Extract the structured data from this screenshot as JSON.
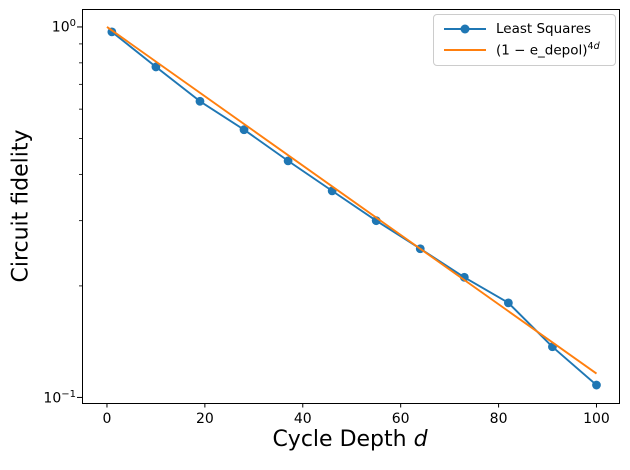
{
  "figure": {
    "background": "#ffffff",
    "text_color": "#000000",
    "spine_color": "#000000"
  },
  "chart_data": {
    "type": "line",
    "title": "",
    "xlabel": "Cycle Depth d",
    "xlabel_main": "Cycle Depth",
    "xlabel_var": "d",
    "ylabel": "Circuit fidelity",
    "yscale": "log",
    "xlim": [
      -5.1,
      104.6
    ],
    "ylim": [
      0.0966,
      1.118
    ],
    "x_ticks": [
      0,
      20,
      40,
      60,
      80,
      100
    ],
    "y_major_ticks": [
      1.0,
      0.1
    ],
    "y_major_tick_labels": [
      {
        "base": "10",
        "exp": "0"
      },
      {
        "base": "10",
        "exp": "−1"
      }
    ],
    "y_minor_ticks": [
      0.9,
      0.8,
      0.7,
      0.6,
      0.5,
      0.4,
      0.3,
      0.2
    ],
    "grid": false,
    "legend_position": "upper right",
    "series": [
      {
        "name": "Least Squares",
        "color": "#1f77b4",
        "marker": "circle",
        "x": [
          1,
          10,
          19,
          28,
          37,
          46,
          55,
          64,
          73,
          82,
          91,
          100
        ],
        "y": [
          0.97,
          0.78,
          0.63,
          0.528,
          0.435,
          0.361,
          0.3,
          0.252,
          0.211,
          0.18,
          0.137,
          0.108
        ]
      },
      {
        "name": "(1 − e_depol)^{4d}",
        "name_main": "(1 − e_depol)",
        "name_sup_num": "4",
        "name_sup_var": "d",
        "color": "#ff7f0e",
        "marker": "none",
        "x": [
          0,
          100
        ],
        "y": [
          1.0,
          0.116
        ]
      }
    ]
  }
}
